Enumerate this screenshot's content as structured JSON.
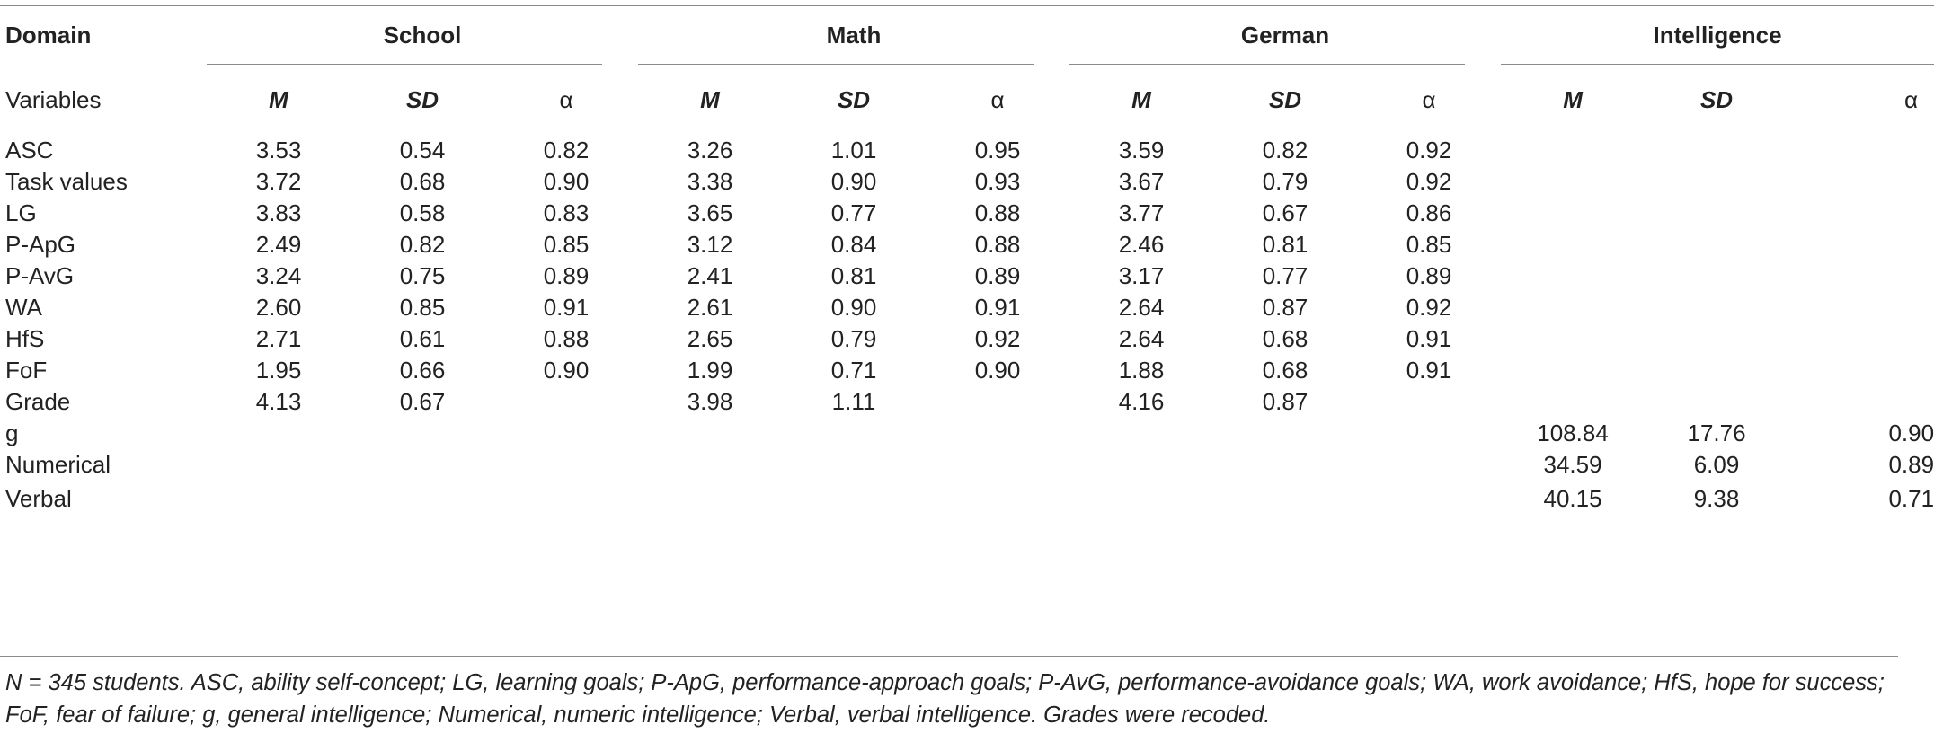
{
  "header": {
    "domain_label": "Domain",
    "variables_label": "Variables",
    "groups": [
      "School",
      "Math",
      "German",
      "Intelligence"
    ],
    "stat_labels": {
      "m": "M",
      "sd": "SD",
      "alpha": "α"
    }
  },
  "rows": [
    {
      "name": "ASC",
      "cells": [
        "3.53",
        "0.54",
        "0.82",
        "3.26",
        "1.01",
        "0.95",
        "3.59",
        "0.82",
        "0.92",
        "",
        "",
        ""
      ]
    },
    {
      "name": "Task values",
      "cells": [
        "3.72",
        "0.68",
        "0.90",
        "3.38",
        "0.90",
        "0.93",
        "3.67",
        "0.79",
        "0.92",
        "",
        "",
        ""
      ]
    },
    {
      "name": "LG",
      "cells": [
        "3.83",
        "0.58",
        "0.83",
        "3.65",
        "0.77",
        "0.88",
        "3.77",
        "0.67",
        "0.86",
        "",
        "",
        ""
      ]
    },
    {
      "name": "P-ApG",
      "cells": [
        "2.49",
        "0.82",
        "0.85",
        "3.12",
        "0.84",
        "0.88",
        "2.46",
        "0.81",
        "0.85",
        "",
        "",
        ""
      ]
    },
    {
      "name": "P-AvG",
      "cells": [
        "3.24",
        "0.75",
        "0.89",
        "2.41",
        "0.81",
        "0.89",
        "3.17",
        "0.77",
        "0.89",
        "",
        "",
        ""
      ]
    },
    {
      "name": "WA",
      "cells": [
        "2.60",
        "0.85",
        "0.91",
        "2.61",
        "0.90",
        "0.91",
        "2.64",
        "0.87",
        "0.92",
        "",
        "",
        ""
      ]
    },
    {
      "name": "HfS",
      "cells": [
        "2.71",
        "0.61",
        "0.88",
        "2.65",
        "0.79",
        "0.92",
        "2.64",
        "0.68",
        "0.91",
        "",
        "",
        ""
      ]
    },
    {
      "name": "FoF",
      "cells": [
        "1.95",
        "0.66",
        "0.90",
        "1.99",
        "0.71",
        "0.90",
        "1.88",
        "0.68",
        "0.91",
        "",
        "",
        ""
      ]
    },
    {
      "name": "Grade",
      "cells": [
        "4.13",
        "0.67",
        "",
        "3.98",
        "1.11",
        "",
        "4.16",
        "0.87",
        "",
        "",
        "",
        ""
      ]
    },
    {
      "name": "g",
      "cells": [
        "",
        "",
        "",
        "",
        "",
        "",
        "",
        "",
        "",
        "108.84",
        "17.76",
        "0.90"
      ]
    },
    {
      "name": "Numerical",
      "cells": [
        "",
        "",
        "",
        "",
        "",
        "",
        "",
        "",
        "",
        "34.59",
        "6.09",
        "0.89"
      ]
    },
    {
      "name": "Verbal",
      "cells": [
        "",
        "",
        "",
        "",
        "",
        "",
        "",
        "",
        "",
        "40.15",
        "9.38",
        "0.71"
      ]
    }
  ],
  "note": "N = 345 students. ASC, ability self-concept; LG, learning goals; P-ApG, performance-approach goals; P-AvG, performance-avoidance goals; WA, work avoidance; HfS, hope for success; FoF, fear of failure; g, general intelligence; Numerical, numeric intelligence; Verbal, verbal intelligence. Grades were recoded."
}
